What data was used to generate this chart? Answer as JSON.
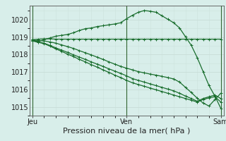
{
  "bg_color": "#d8eeea",
  "grid_color": "#c8ddd8",
  "line_color": "#1a6e2e",
  "x_ticks": [
    0,
    16,
    32
  ],
  "x_tick_labels": [
    "Jeu",
    "Ven",
    "Sam"
  ],
  "ylim": [
    1014.5,
    1020.8
  ],
  "yticks": [
    1015,
    1016,
    1017,
    1018,
    1019,
    1020
  ],
  "xlabel": "Pression niveau de la mer( hPa )",
  "series": [
    {
      "x": [
        0,
        1,
        2,
        3,
        4,
        5,
        6,
        7,
        8,
        9,
        10,
        11,
        12,
        13,
        14,
        15,
        16,
        17,
        18,
        19,
        20,
        21,
        22,
        23,
        24,
        25,
        26,
        27,
        28,
        29,
        30,
        31,
        32
      ],
      "y": [
        1018.85,
        1018.75,
        1018.85,
        1018.95,
        1019.05,
        1019.1,
        1019.15,
        1019.25,
        1019.38,
        1019.48,
        1019.52,
        1019.6,
        1019.65,
        1019.7,
        1019.75,
        1019.82,
        1020.05,
        1020.25,
        1020.42,
        1020.52,
        1020.48,
        1020.42,
        1020.22,
        1020.02,
        1019.82,
        1019.52,
        1019.02,
        1018.52,
        1017.82,
        1017.02,
        1016.22,
        1015.62,
        1014.92
      ]
    },
    {
      "x": [
        0,
        1,
        2,
        3,
        4,
        5,
        6,
        7,
        8,
        9,
        10,
        11,
        12,
        13,
        14,
        15,
        16,
        17,
        18,
        19,
        20,
        21,
        22,
        23,
        24,
        25,
        26,
        27,
        28,
        29,
        30,
        31,
        32
      ],
      "y": [
        1018.85,
        1018.88,
        1018.9,
        1018.9,
        1018.88,
        1018.88,
        1018.88,
        1018.88,
        1018.88,
        1018.88,
        1018.88,
        1018.88,
        1018.88,
        1018.88,
        1018.88,
        1018.88,
        1018.88,
        1018.88,
        1018.88,
        1018.88,
        1018.88,
        1018.88,
        1018.88,
        1018.88,
        1018.88,
        1018.88,
        1018.88,
        1018.88,
        1018.88,
        1018.88,
        1018.88,
        1018.88,
        1018.88
      ]
    },
    {
      "x": [
        0,
        1,
        2,
        3,
        4,
        5,
        6,
        7,
        8,
        9,
        10,
        11,
        12,
        13,
        14,
        15,
        16,
        17,
        18,
        19,
        20,
        21,
        22,
        23,
        24,
        25,
        26,
        27,
        28,
        29,
        30,
        31,
        32
      ],
      "y": [
        1018.82,
        1018.8,
        1018.78,
        1018.72,
        1018.65,
        1018.55,
        1018.45,
        1018.35,
        1018.22,
        1018.1,
        1017.98,
        1017.85,
        1017.72,
        1017.58,
        1017.45,
        1017.32,
        1017.22,
        1017.12,
        1017.02,
        1016.95,
        1016.88,
        1016.82,
        1016.75,
        1016.68,
        1016.6,
        1016.42,
        1016.12,
        1015.82,
        1015.5,
        1015.22,
        1015.05,
        1015.42,
        1015.78
      ]
    },
    {
      "x": [
        0,
        1,
        2,
        3,
        4,
        5,
        6,
        7,
        8,
        9,
        10,
        11,
        12,
        13,
        14,
        15,
        16,
        17,
        18,
        19,
        20,
        21,
        22,
        23,
        24,
        25,
        26,
        27,
        28,
        29,
        30,
        31,
        32
      ],
      "y": [
        1018.8,
        1018.72,
        1018.65,
        1018.52,
        1018.38,
        1018.25,
        1018.12,
        1017.98,
        1017.85,
        1017.72,
        1017.58,
        1017.45,
        1017.32,
        1017.18,
        1017.05,
        1016.92,
        1016.78,
        1016.62,
        1016.52,
        1016.42,
        1016.32,
        1016.22,
        1016.12,
        1016.02,
        1015.92,
        1015.78,
        1015.62,
        1015.48,
        1015.32,
        1015.48,
        1015.58,
        1015.68,
        1015.48
      ]
    },
    {
      "x": [
        0,
        1,
        2,
        3,
        4,
        5,
        6,
        7,
        8,
        9,
        10,
        11,
        12,
        13,
        14,
        15,
        16,
        17,
        18,
        19,
        20,
        21,
        22,
        23,
        24,
        25,
        26,
        27,
        28,
        29,
        30,
        31,
        32
      ],
      "y": [
        1018.78,
        1018.7,
        1018.62,
        1018.48,
        1018.32,
        1018.18,
        1018.02,
        1017.88,
        1017.72,
        1017.58,
        1017.42,
        1017.28,
        1017.12,
        1016.98,
        1016.82,
        1016.68,
        1016.52,
        1016.38,
        1016.28,
        1016.18,
        1016.08,
        1015.98,
        1015.88,
        1015.78,
        1015.68,
        1015.58,
        1015.48,
        1015.38,
        1015.28,
        1015.42,
        1015.52,
        1015.58,
        1015.28
      ]
    }
  ],
  "vline_positions": [
    0,
    16,
    32
  ],
  "tick_fontsize": 7,
  "xlabel_fontsize": 8
}
